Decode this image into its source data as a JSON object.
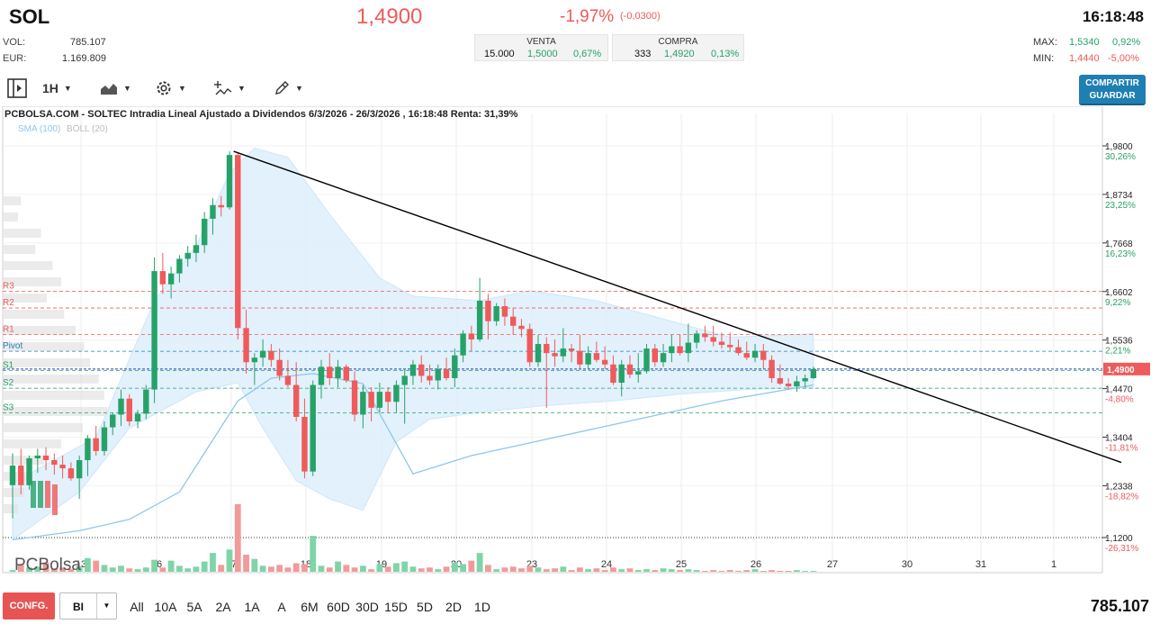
{
  "header": {
    "ticker": "SOL",
    "price": "1,4900",
    "change_pct": "-1,97%",
    "change_abs": "(-0,0300)",
    "time": "16:18:48"
  },
  "stats": {
    "vol_label": "VOL:",
    "vol_value": "785.107",
    "eur_label": "EUR:",
    "eur_value": "1.169.809",
    "max_label": "MAX:",
    "max_value": "1,5340",
    "max_pct": "0,92%",
    "min_label": "MIN:",
    "min_value": "1,4440",
    "min_pct": "-5,00%"
  },
  "orderbook": {
    "venta_label": "VENTA",
    "venta_qty": "15.000",
    "venta_price": "1,5000",
    "venta_pct": "0,67%",
    "compra_label": "COMPRA",
    "compra_qty": "333",
    "compra_price": "1,4920",
    "compra_pct": "0,13%"
  },
  "toolbar": {
    "interval": "1H",
    "share_line1": "COMPARTIR",
    "share_line2": "GUARDAR",
    "icons": [
      "panel-toggle-icon",
      "area-chart-icon",
      "gear-icon",
      "indicators-icon",
      "draw-pencil-icon"
    ]
  },
  "chart": {
    "title": "PCBOLSA.COM - SOLTEC Intradia Lineal Ajustado a Dividendos 6/3/2026 - 26/3/2026 , 16:18:48 Renta: 31,39%",
    "sma_label": "SMA (100)",
    "boll_label": "BOLL (20)",
    "watermark": "PCBolsa"
  },
  "chart_data": {
    "type": "candlestick",
    "x_labels": [
      "13",
      "16",
      "17",
      "18",
      "19",
      "20",
      "23",
      "24",
      "25",
      "26",
      "27",
      "30",
      "31",
      "1"
    ],
    "price_axis": [
      {
        "value": "1,9800",
        "pct": "30,26%"
      },
      {
        "value": "1,8734",
        "pct": "23,25%"
      },
      {
        "value": "1,7668",
        "pct": "16,23%"
      },
      {
        "value": "1,6602",
        "pct": "9,22%"
      },
      {
        "value": "1,5536",
        "pct": "2,21%"
      },
      {
        "value": "1,4470",
        "pct": "-4,80%"
      },
      {
        "value": "1,3404",
        "pct": "-11,81%"
      },
      {
        "value": "1,2338",
        "pct": "-18,82%"
      },
      {
        "value": "1,1200",
        "pct": "-26,31%"
      }
    ],
    "current_price": "1,4900",
    "pivot_levels": [
      {
        "name": "R3",
        "value": 1.661
      },
      {
        "name": "R2",
        "value": 1.624
      },
      {
        "name": "R1",
        "value": 1.566
      },
      {
        "name": "Pivot",
        "value": 1.529
      },
      {
        "name": "S1",
        "value": 1.487
      },
      {
        "name": "S2",
        "value": 1.448
      },
      {
        "name": "S3",
        "value": 1.394
      }
    ],
    "candles": [
      [
        1.235,
        1.305,
        1.162,
        1.278
      ],
      [
        1.278,
        1.315,
        1.215,
        1.235
      ],
      [
        1.235,
        1.3,
        1.225,
        1.294
      ],
      [
        1.294,
        1.315,
        1.262,
        1.3
      ],
      [
        1.3,
        1.318,
        1.268,
        1.29
      ],
      [
        1.29,
        1.305,
        1.258,
        1.28
      ],
      [
        1.28,
        1.3,
        1.25,
        1.272
      ],
      [
        1.272,
        1.285,
        1.245,
        1.25
      ],
      [
        1.25,
        1.3,
        1.205,
        1.29
      ],
      [
        1.29,
        1.345,
        1.255,
        1.338
      ],
      [
        1.338,
        1.365,
        1.3,
        1.31
      ],
      [
        1.31,
        1.375,
        1.3,
        1.362
      ],
      [
        1.362,
        1.395,
        1.345,
        1.39
      ],
      [
        1.39,
        1.445,
        1.365,
        1.425
      ],
      [
        1.425,
        1.435,
        1.365,
        1.375
      ],
      [
        1.375,
        1.4,
        1.36,
        1.392
      ],
      [
        1.392,
        1.455,
        1.38,
        1.445
      ],
      [
        1.445,
        1.735,
        1.415,
        1.705
      ],
      [
        1.705,
        1.745,
        1.655,
        1.676
      ],
      [
        1.676,
        1.715,
        1.645,
        1.7
      ],
      [
        1.7,
        1.74,
        1.68,
        1.732
      ],
      [
        1.732,
        1.76,
        1.715,
        1.745
      ],
      [
        1.745,
        1.785,
        1.725,
        1.762
      ],
      [
        1.762,
        1.835,
        1.745,
        1.82
      ],
      [
        1.82,
        1.865,
        1.785,
        1.85
      ],
      [
        1.85,
        1.87,
        1.825,
        1.845
      ],
      [
        1.845,
        1.968,
        1.84,
        1.96
      ],
      [
        1.96,
        1.965,
        1.555,
        1.58
      ],
      [
        1.58,
        1.62,
        1.48,
        1.505
      ],
      [
        1.505,
        1.525,
        1.455,
        1.515
      ],
      [
        1.515,
        1.555,
        1.495,
        1.53
      ],
      [
        1.53,
        1.545,
        1.495,
        1.51
      ],
      [
        1.51,
        1.535,
        1.465,
        1.475
      ],
      [
        1.475,
        1.51,
        1.45,
        1.455
      ],
      [
        1.455,
        1.505,
        1.375,
        1.385
      ],
      [
        1.385,
        1.425,
        1.25,
        1.265
      ],
      [
        1.265,
        1.465,
        1.255,
        1.455
      ],
      [
        1.455,
        1.51,
        1.425,
        1.495
      ],
      [
        1.495,
        1.525,
        1.455,
        1.47
      ],
      [
        1.47,
        1.51,
        1.45,
        1.495
      ],
      [
        1.495,
        1.5,
        1.46,
        1.465
      ],
      [
        1.465,
        1.485,
        1.375,
        1.39
      ],
      [
        1.39,
        1.455,
        1.36,
        1.44
      ],
      [
        1.44,
        1.45,
        1.375,
        1.405
      ],
      [
        1.405,
        1.46,
        1.395,
        1.44
      ],
      [
        1.44,
        1.45,
        1.395,
        1.418
      ],
      [
        1.418,
        1.465,
        1.395,
        1.455
      ],
      [
        1.455,
        1.49,
        1.37,
        1.475
      ],
      [
        1.475,
        1.51,
        1.455,
        1.5
      ],
      [
        1.5,
        1.52,
        1.46,
        1.475
      ],
      [
        1.475,
        1.5,
        1.455,
        1.465
      ],
      [
        1.465,
        1.5,
        1.445,
        1.49
      ],
      [
        1.49,
        1.515,
        1.465,
        1.47
      ],
      [
        1.47,
        1.535,
        1.45,
        1.52
      ],
      [
        1.52,
        1.575,
        1.505,
        1.568
      ],
      [
        1.568,
        1.585,
        1.53,
        1.555
      ],
      [
        1.555,
        1.69,
        1.55,
        1.64
      ],
      [
        1.64,
        1.655,
        1.555,
        1.595
      ],
      [
        1.595,
        1.635,
        1.585,
        1.628
      ],
      [
        1.628,
        1.645,
        1.585,
        1.605
      ],
      [
        1.605,
        1.625,
        1.565,
        1.585
      ],
      [
        1.585,
        1.6,
        1.56,
        1.578
      ],
      [
        1.578,
        1.59,
        1.495,
        1.505
      ],
      [
        1.505,
        1.565,
        1.495,
        1.545
      ],
      [
        1.545,
        1.56,
        1.405,
        1.525
      ],
      [
        1.525,
        1.555,
        1.495,
        1.518
      ],
      [
        1.518,
        1.58,
        1.505,
        1.535
      ],
      [
        1.535,
        1.545,
        1.505,
        1.53
      ],
      [
        1.53,
        1.565,
        1.49,
        1.5
      ],
      [
        1.5,
        1.54,
        1.49,
        1.525
      ],
      [
        1.525,
        1.55,
        1.505,
        1.51
      ],
      [
        1.51,
        1.54,
        1.49,
        1.5
      ],
      [
        1.5,
        1.52,
        1.455,
        1.46
      ],
      [
        1.46,
        1.51,
        1.43,
        1.5
      ],
      [
        1.5,
        1.52,
        1.47,
        1.478
      ],
      [
        1.478,
        1.525,
        1.46,
        1.485
      ],
      [
        1.485,
        1.545,
        1.48,
        1.535
      ],
      [
        1.535,
        1.545,
        1.495,
        1.505
      ],
      [
        1.505,
        1.545,
        1.495,
        1.525
      ],
      [
        1.525,
        1.565,
        1.505,
        1.54
      ],
      [
        1.54,
        1.565,
        1.52,
        1.525
      ],
      [
        1.525,
        1.59,
        1.505,
        1.548
      ],
      [
        1.548,
        1.575,
        1.535,
        1.568
      ],
      [
        1.568,
        1.585,
        1.55,
        1.56
      ],
      [
        1.56,
        1.585,
        1.54,
        1.55
      ],
      [
        1.55,
        1.57,
        1.535,
        1.543
      ],
      [
        1.543,
        1.57,
        1.53,
        1.538
      ],
      [
        1.538,
        1.555,
        1.52,
        1.525
      ],
      [
        1.525,
        1.55,
        1.51,
        1.515
      ],
      [
        1.515,
        1.545,
        1.505,
        1.53
      ],
      [
        1.53,
        1.545,
        1.49,
        1.51
      ],
      [
        1.51,
        1.52,
        1.46,
        1.47
      ],
      [
        1.47,
        1.5,
        1.455,
        1.458
      ],
      [
        1.458,
        1.47,
        1.445,
        1.452
      ],
      [
        1.452,
        1.475,
        1.44,
        1.463
      ],
      [
        1.463,
        1.478,
        1.45,
        1.47
      ],
      [
        1.47,
        1.495,
        1.468,
        1.49
      ]
    ],
    "volumes": [
      0.02,
      0.08,
      0.05,
      0.06,
      0.11,
      0.04,
      0.05,
      0.03,
      0.06,
      0.16,
      0.13,
      0.08,
      0.05,
      0.07,
      0.04,
      0.03,
      0.05,
      0.14,
      0.05,
      0.13,
      0.07,
      0.04,
      0.06,
      0.12,
      0.22,
      0.08,
      0.26,
      0.79,
      0.2,
      0.15,
      0.07,
      0.06,
      0.08,
      0.05,
      0.1,
      0.09,
      0.42,
      0.07,
      0.05,
      0.12,
      0.08,
      0.05,
      0.07,
      0.03,
      0.09,
      0.06,
      0.1,
      0.12,
      0.06,
      0.04,
      0.05,
      0.03,
      0.06,
      0.11,
      0.09,
      0.13,
      0.22,
      0.08,
      0.03,
      0.05,
      0.06,
      0.04,
      0.07,
      0.05,
      0.03,
      0.04,
      0.06,
      0.02,
      0.05,
      0.03,
      0.04,
      0.02,
      0.05,
      0.03,
      0.04,
      0.02,
      0.03,
      0.02,
      0.04,
      0.03,
      0.02,
      0.03,
      0.02,
      0.01,
      0.02,
      0.01,
      0.02,
      0.01,
      0.02,
      0.03,
      0.01,
      0.02,
      0.01,
      0.01,
      0.02,
      0.01,
      0.01
    ],
    "sma100": [
      [
        0,
        1.115
      ],
      [
        8,
        1.135
      ],
      [
        14,
        1.16
      ],
      [
        20,
        1.22
      ],
      [
        27,
        1.42
      ],
      [
        31,
        1.47
      ],
      [
        36,
        1.48
      ],
      [
        42,
        1.458
      ],
      [
        48,
        1.26
      ],
      [
        55,
        1.3
      ],
      [
        65,
        1.34
      ],
      [
        75,
        1.38
      ],
      [
        85,
        1.42
      ],
      [
        96,
        1.455
      ]
    ],
    "boll_upper": [
      [
        0,
        1.24
      ],
      [
        10,
        1.34
      ],
      [
        17,
        1.64
      ],
      [
        22,
        1.76
      ],
      [
        26,
        1.92
      ],
      [
        29,
        1.975
      ],
      [
        33,
        1.955
      ],
      [
        38,
        1.83
      ],
      [
        41,
        1.76
      ],
      [
        44,
        1.69
      ],
      [
        48,
        1.65
      ],
      [
        56,
        1.64
      ],
      [
        62,
        1.662
      ],
      [
        70,
        1.64
      ],
      [
        78,
        1.6
      ],
      [
        86,
        1.56
      ],
      [
        93,
        1.565
      ],
      [
        96,
        1.568
      ]
    ],
    "boll_lower": [
      [
        0,
        1.115
      ],
      [
        8,
        1.22
      ],
      [
        14,
        1.36
      ],
      [
        18,
        1.4
      ],
      [
        22,
        1.44
      ],
      [
        27,
        1.46
      ],
      [
        30,
        1.36
      ],
      [
        34,
        1.245
      ],
      [
        38,
        1.205
      ],
      [
        42,
        1.18
      ],
      [
        46,
        1.33
      ],
      [
        50,
        1.38
      ],
      [
        56,
        1.395
      ],
      [
        64,
        1.41
      ],
      [
        72,
        1.42
      ],
      [
        80,
        1.435
      ],
      [
        88,
        1.445
      ],
      [
        96,
        1.45
      ]
    ],
    "trendline": [
      [
        1.968,
        26.5
      ],
      [
        1.285,
        100
      ]
    ],
    "volume_profile": [
      0.12,
      0.1,
      0.26,
      0.22,
      0.34,
      0.4,
      0.3,
      0.42,
      0.5,
      0.56,
      0.6,
      0.66,
      0.7,
      0.72,
      0.55,
      0.4,
      0.28,
      0.2,
      0.14,
      0.1
    ]
  },
  "bottom": {
    "confg": "CONFG.",
    "bi": "BI",
    "ranges": [
      "All",
      "10A",
      "5A",
      "2A",
      "1A",
      "A",
      "6M",
      "60D",
      "30D",
      "15D",
      "5D",
      "2D",
      "1D"
    ],
    "volume_total": "785.107"
  },
  "colors": {
    "up": "#26a269",
    "down": "#ef5a5a",
    "sma": "#8fc6ec",
    "boll_fill": "#dbeefb",
    "accent": "#1f7fb2"
  }
}
